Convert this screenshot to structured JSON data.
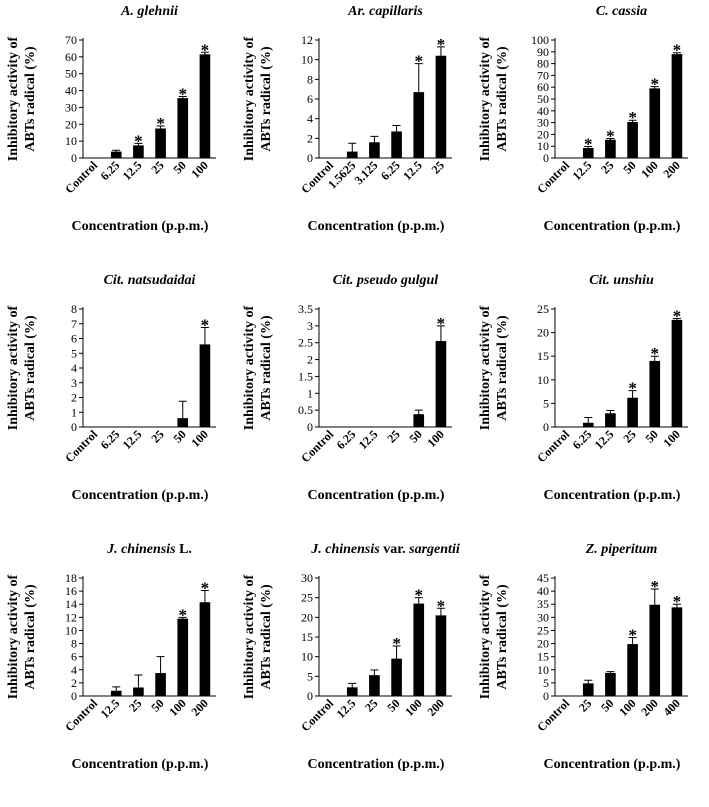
{
  "chart_data": [
    {
      "type": "bar",
      "title": "A. glehnii",
      "title_italic_part": "A. glehnii",
      "title_plain_part": "",
      "xlabel": "Concentration (p.p.m.)",
      "ylabel": [
        "Inhibitory  activity of",
        "ABTs radical (%)"
      ],
      "categories": [
        "Control",
        "6.25",
        "12.5",
        "25",
        "50",
        "100"
      ],
      "values": [
        0,
        3.8,
        7.5,
        17.5,
        35.5,
        61.5
      ],
      "errors": [
        0,
        0.8,
        1.2,
        1.5,
        1.0,
        1.2
      ],
      "significant": [
        false,
        false,
        true,
        true,
        true,
        true
      ],
      "annotation_symbol": "*",
      "ylim": [
        0,
        70
      ],
      "yticks": [
        0,
        10,
        20,
        30,
        40,
        50,
        60,
        70
      ]
    },
    {
      "type": "bar",
      "title": "Ar. capillaris",
      "title_italic_part": "Ar. capillaris",
      "title_plain_part": "",
      "xlabel": "Concentration (p.p.m.)",
      "ylabel": [
        "Inhibitory  activity of",
        "ABTs radical (%)"
      ],
      "categories": [
        "Control",
        "1.5625",
        "3.125",
        "6.25",
        "12.5",
        "25"
      ],
      "values": [
        0,
        0.65,
        1.6,
        2.7,
        6.7,
        10.4
      ],
      "errors": [
        0,
        0.85,
        0.6,
        0.6,
        2.9,
        0.9
      ],
      "significant": [
        false,
        false,
        false,
        false,
        true,
        true
      ],
      "annotation_symbol": "*",
      "ylim": [
        0,
        12
      ],
      "yticks": [
        0,
        2,
        4,
        6,
        8,
        10,
        12
      ]
    },
    {
      "type": "bar",
      "title": "C. cassia",
      "title_italic_part": "C. cassia",
      "title_plain_part": "",
      "xlabel": "Concentration (p.p.m.)",
      "ylabel": [
        "Inhibitory  activity of",
        "ABTs radical (%)"
      ],
      "categories": [
        "Control",
        "12.5",
        "25",
        "50",
        "100",
        "200"
      ],
      "values": [
        0,
        8.5,
        15.5,
        30.5,
        59,
        88
      ],
      "errors": [
        0,
        1.2,
        1.0,
        1.5,
        1.5,
        1.2
      ],
      "significant": [
        false,
        true,
        true,
        true,
        true,
        true
      ],
      "annotation_symbol": "*",
      "ylim": [
        0,
        100
      ],
      "yticks": [
        0,
        10,
        20,
        30,
        40,
        50,
        60,
        70,
        80,
        90,
        100
      ]
    },
    {
      "type": "bar",
      "title": "Cit. natsudaidai",
      "title_italic_part": "Cit. natsudaidai",
      "title_plain_part": "",
      "xlabel": "Concentration (p.p.m.)",
      "ylabel": [
        "Inhibitory  activity of",
        "ABTs radical (%)"
      ],
      "categories": [
        "Control",
        "6.25",
        "12.5",
        "25",
        "50",
        "100"
      ],
      "values": [
        0,
        0,
        0,
        0,
        0.6,
        5.6
      ],
      "errors": [
        0,
        0,
        0,
        0,
        1.15,
        1.15
      ],
      "significant": [
        false,
        false,
        false,
        false,
        false,
        true
      ],
      "annotation_symbol": "*",
      "ylim": [
        0,
        8
      ],
      "yticks": [
        0,
        1,
        2,
        3,
        4,
        5,
        6,
        7,
        8
      ]
    },
    {
      "type": "bar",
      "title": "Cit. pseudo gulgul",
      "title_italic_part": "Cit. pseudo gulgul",
      "title_plain_part": "",
      "xlabel": "Concentration (p.p.m.)",
      "ylabel": [
        "Inhibitory  activity of",
        "ABTs radical (%)"
      ],
      "categories": [
        "Control",
        "6.25",
        "12.5",
        "25",
        "50",
        "100"
      ],
      "values": [
        0,
        0,
        0,
        0,
        0.38,
        2.55
      ],
      "errors": [
        0,
        0,
        0,
        0,
        0.12,
        0.45
      ],
      "significant": [
        false,
        false,
        false,
        false,
        false,
        true
      ],
      "annotation_symbol": "*",
      "ylim": [
        0,
        3.5
      ],
      "yticks": [
        0,
        0.5,
        1,
        1.5,
        2,
        2.5,
        3,
        3.5
      ]
    },
    {
      "type": "bar",
      "title": "Cit. unshiu",
      "title_italic_part": "Cit. unshiu",
      "title_plain_part": "",
      "xlabel": "Concentration (p.p.m.)",
      "ylabel": [
        "Inhibitory  activity of",
        "ABTs radical (%)"
      ],
      "categories": [
        "Control",
        "6.25",
        "12.5",
        "25",
        "50",
        "100"
      ],
      "values": [
        0,
        0.9,
        2.9,
        6.2,
        14,
        22.7
      ],
      "errors": [
        0,
        1.1,
        0.6,
        1.5,
        1.0,
        0.3
      ],
      "significant": [
        false,
        false,
        false,
        true,
        true,
        true
      ],
      "annotation_symbol": "*",
      "ylim": [
        0,
        25
      ],
      "yticks": [
        0,
        5,
        10,
        15,
        20,
        25
      ]
    },
    {
      "type": "bar",
      "title": "J. chinensis L.",
      "title_italic_part": "J. chinensis",
      "title_plain_part": " L.",
      "xlabel": "Concentration (p.p.m.)",
      "ylabel": [
        "Inhibitory  activity of",
        "ABTs radical (%)"
      ],
      "categories": [
        "Control",
        "12.5",
        "25",
        "50",
        "100",
        "200"
      ],
      "values": [
        0,
        0.8,
        1.3,
        3.5,
        11.8,
        14.3
      ],
      "errors": [
        0,
        0.6,
        1.9,
        2.5,
        0.2,
        1.8
      ],
      "significant": [
        false,
        false,
        false,
        false,
        true,
        true
      ],
      "annotation_symbol": "*",
      "ylim": [
        0,
        18
      ],
      "yticks": [
        0,
        2,
        4,
        6,
        8,
        10,
        12,
        14,
        16,
        18
      ]
    },
    {
      "type": "bar",
      "title": "J. chinensis var. sargentii",
      "title_italic_part": "J. chinensis",
      "title_middle_part": " var. ",
      "title_italic_part2": "sargentii",
      "xlabel": "Concentration (p.p.m.)",
      "ylabel": [
        "Inhibitory  activity of",
        "ABTs radical (%)"
      ],
      "categories": [
        "Control",
        "12.5",
        "25",
        "50",
        "100",
        "200"
      ],
      "values": [
        0,
        2.2,
        5.3,
        9.5,
        23.5,
        20.5
      ],
      "errors": [
        0,
        1.0,
        1.3,
        3.2,
        1.5,
        1.8
      ],
      "significant": [
        false,
        false,
        false,
        true,
        true,
        true
      ],
      "annotation_symbol": "*",
      "ylim": [
        0,
        30
      ],
      "yticks": [
        0,
        5,
        10,
        15,
        20,
        25,
        30
      ]
    },
    {
      "type": "bar",
      "title": "Z. piperitum",
      "title_italic_part": "Z. piperitum",
      "title_plain_part": "",
      "xlabel": "Concentration (p.p.m.)",
      "ylabel": [
        "Inhibitory  activity of",
        "ABTs radical (%)"
      ],
      "categories": [
        "Control",
        "25",
        "50",
        "100",
        "200",
        "400"
      ],
      "values": [
        0,
        4.8,
        8.8,
        19.8,
        34.8,
        33.8
      ],
      "errors": [
        0,
        1.2,
        0.5,
        2.5,
        6.0,
        1.2
      ],
      "significant": [
        false,
        false,
        false,
        true,
        true,
        true
      ],
      "annotation_symbol": "*",
      "ylim": [
        0,
        45
      ],
      "yticks": [
        0,
        5,
        10,
        15,
        20,
        25,
        30,
        35,
        40,
        45
      ]
    }
  ]
}
